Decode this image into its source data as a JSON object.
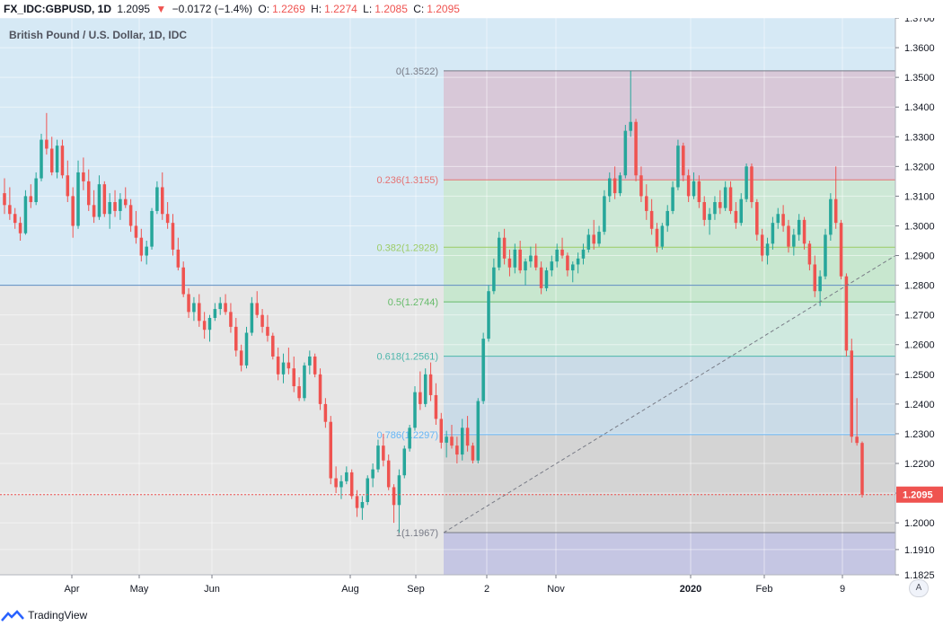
{
  "header": {
    "symbol": "FX_IDC:GBPUSD, 1D",
    "last": "1.2095",
    "change": "−0.0172 (−1.4%)",
    "o_label": "O:",
    "o_value": "1.2269",
    "h_label": "H:",
    "h_value": "1.2274",
    "l_label": "L:",
    "l_value": "1.2085",
    "c_label": "C:",
    "c_value": "1.2095"
  },
  "chart_title": "British Pound / U.S. Dollar, 1D, IDC",
  "footer": {
    "brand": "TradingView"
  },
  "auto_label": "A",
  "colors": {
    "up": "#26a69a",
    "down": "#ef5350",
    "upper_zone": "#d6e9f5",
    "lower_zone": "#e6e6e6",
    "bottom_zone": "#c5c6e3",
    "fib_0_236": "#d8c8d8",
    "fib_236_382": "#cde8d6",
    "fib_382_5": "#c8e7cf",
    "fib_5_618": "#cfe9df",
    "fib_618_786": "#cadbe7",
    "fib_786_1": "#d4d4d4"
  },
  "chart_data": {
    "type": "candlestick",
    "title": "British Pound / U.S. Dollar, 1D, IDC",
    "ylim": [
      1.1825,
      1.37
    ],
    "y_ticks": [
      "1.3700",
      "1.3600",
      "1.3500",
      "1.3400",
      "1.3300",
      "1.3200",
      "1.3100",
      "1.3000",
      "1.2900",
      "1.2800",
      "1.2700",
      "1.2600",
      "1.2500",
      "1.2400",
      "1.2300",
      "1.2200",
      "1.2100",
      "1.2000",
      "1.1910",
      "1.1825"
    ],
    "x_ticks": [
      "Apr",
      "May",
      "Jun",
      "Aug",
      "Sep",
      "2",
      "Nov",
      "2020",
      "Feb",
      "9"
    ],
    "current_price": "1.2095",
    "fib_levels": [
      {
        "label": "0(1.3522)",
        "value": 1.3522,
        "color": "#787b86"
      },
      {
        "label": "0.236(1.3155)",
        "value": 1.3155,
        "color": "#e57373"
      },
      {
        "label": "0.382(1.2928)",
        "value": 1.2928,
        "color": "#9ccc65"
      },
      {
        "label": "0.5(1.2744)",
        "value": 1.2744,
        "color": "#66bb6a"
      },
      {
        "label": "0.618(1.2561)",
        "value": 1.2561,
        "color": "#4db6ac"
      },
      {
        "label": "0.786(1.2297)",
        "value": 1.2297,
        "color": "#64b5f6"
      },
      {
        "label": "1(1.1967)",
        "value": 1.1967,
        "color": "#787b86"
      }
    ],
    "horizontal_line": 1.28,
    "candles": [
      [
        1.311,
        1.316,
        1.304,
        1.307
      ],
      [
        1.307,
        1.313,
        1.302,
        1.304
      ],
      [
        1.304,
        1.306,
        1.299,
        1.301
      ],
      [
        1.301,
        1.303,
        1.295,
        1.2975
      ],
      [
        1.2975,
        1.312,
        1.297,
        1.31
      ],
      [
        1.31,
        1.314,
        1.306,
        1.308
      ],
      [
        1.308,
        1.318,
        1.307,
        1.316
      ],
      [
        1.316,
        1.331,
        1.315,
        1.329
      ],
      [
        1.329,
        1.338,
        1.324,
        1.326
      ],
      [
        1.326,
        1.33,
        1.317,
        1.318
      ],
      [
        1.318,
        1.329,
        1.316,
        1.327
      ],
      [
        1.327,
        1.329,
        1.316,
        1.317
      ],
      [
        1.317,
        1.322,
        1.308,
        1.31
      ],
      [
        1.31,
        1.313,
        1.296,
        1.3
      ],
      [
        1.3,
        1.322,
        1.299,
        1.318
      ],
      [
        1.318,
        1.323,
        1.312,
        1.315
      ],
      [
        1.315,
        1.319,
        1.305,
        1.307
      ],
      [
        1.307,
        1.312,
        1.301,
        1.303
      ],
      [
        1.303,
        1.317,
        1.302,
        1.314
      ],
      [
        1.314,
        1.315,
        1.303,
        1.304
      ],
      [
        1.304,
        1.311,
        1.299,
        1.308
      ],
      [
        1.308,
        1.312,
        1.303,
        1.305
      ],
      [
        1.305,
        1.311,
        1.302,
        1.309
      ],
      [
        1.309,
        1.313,
        1.306,
        1.307
      ],
      [
        1.307,
        1.309,
        1.298,
        1.3
      ],
      [
        1.3,
        1.305,
        1.294,
        1.296
      ],
      [
        1.296,
        1.299,
        1.288,
        1.29
      ],
      [
        1.29,
        1.295,
        1.287,
        1.293
      ],
      [
        1.293,
        1.306,
        1.292,
        1.305
      ],
      [
        1.305,
        1.315,
        1.304,
        1.313
      ],
      [
        1.313,
        1.318,
        1.302,
        1.304
      ],
      [
        1.304,
        1.308,
        1.299,
        1.301
      ],
      [
        1.301,
        1.304,
        1.29,
        1.292
      ],
      [
        1.292,
        1.296,
        1.285,
        1.286
      ],
      [
        1.286,
        1.288,
        1.276,
        1.277
      ],
      [
        1.277,
        1.279,
        1.269,
        1.271
      ],
      [
        1.271,
        1.276,
        1.268,
        1.274
      ],
      [
        1.274,
        1.277,
        1.266,
        1.268
      ],
      [
        1.268,
        1.271,
        1.262,
        1.265
      ],
      [
        1.265,
        1.27,
        1.261,
        1.269
      ],
      [
        1.269,
        1.274,
        1.268,
        1.272
      ],
      [
        1.272,
        1.276,
        1.27,
        1.274
      ],
      [
        1.274,
        1.277,
        1.27,
        1.271
      ],
      [
        1.271,
        1.274,
        1.264,
        1.266
      ],
      [
        1.266,
        1.269,
        1.256,
        1.258
      ],
      [
        1.258,
        1.26,
        1.251,
        1.253
      ],
      [
        1.253,
        1.266,
        1.252,
        1.264
      ],
      [
        1.264,
        1.276,
        1.263,
        1.274
      ],
      [
        1.274,
        1.278,
        1.269,
        1.27
      ],
      [
        1.27,
        1.272,
        1.264,
        1.266
      ],
      [
        1.266,
        1.27,
        1.261,
        1.263
      ],
      [
        1.263,
        1.264,
        1.255,
        1.256
      ],
      [
        1.256,
        1.259,
        1.248,
        1.25
      ],
      [
        1.25,
        1.257,
        1.247,
        1.254
      ],
      [
        1.254,
        1.259,
        1.25,
        1.252
      ],
      [
        1.252,
        1.256,
        1.244,
        1.246
      ],
      [
        1.246,
        1.249,
        1.241,
        1.242
      ],
      [
        1.242,
        1.254,
        1.241,
        1.253
      ],
      [
        1.253,
        1.258,
        1.25,
        1.256
      ],
      [
        1.256,
        1.257,
        1.249,
        1.25
      ],
      [
        1.25,
        1.252,
        1.238,
        1.24
      ],
      [
        1.24,
        1.242,
        1.232,
        1.234
      ],
      [
        1.234,
        1.236,
        1.213,
        1.215
      ],
      [
        1.215,
        1.219,
        1.21,
        1.212
      ],
      [
        1.212,
        1.216,
        1.208,
        1.214
      ],
      [
        1.214,
        1.219,
        1.213,
        1.217
      ],
      [
        1.217,
        1.218,
        1.208,
        1.209
      ],
      [
        1.209,
        1.211,
        1.202,
        1.205
      ],
      [
        1.205,
        1.209,
        1.201,
        1.207
      ],
      [
        1.207,
        1.216,
        1.206,
        1.215
      ],
      [
        1.215,
        1.22,
        1.212,
        1.218
      ],
      [
        1.218,
        1.228,
        1.217,
        1.226
      ],
      [
        1.226,
        1.23,
        1.219,
        1.221
      ],
      [
        1.221,
        1.223,
        1.211,
        1.212
      ],
      [
        1.212,
        1.213,
        1.2,
        1.206
      ],
      [
        1.206,
        1.218,
        1.1967,
        1.216
      ],
      [
        1.216,
        1.226,
        1.215,
        1.225
      ],
      [
        1.225,
        1.233,
        1.224,
        1.232
      ],
      [
        1.232,
        1.246,
        1.231,
        1.244
      ],
      [
        1.244,
        1.251,
        1.238,
        1.24
      ],
      [
        1.24,
        1.252,
        1.239,
        1.25
      ],
      [
        1.25,
        1.254,
        1.241,
        1.243
      ],
      [
        1.243,
        1.247,
        1.233,
        1.235
      ],
      [
        1.235,
        1.237,
        1.225,
        1.227
      ],
      [
        1.227,
        1.231,
        1.222,
        1.229
      ],
      [
        1.229,
        1.233,
        1.225,
        1.226
      ],
      [
        1.226,
        1.229,
        1.22,
        1.223
      ],
      [
        1.223,
        1.235,
        1.221,
        1.232
      ],
      [
        1.232,
        1.236,
        1.224,
        1.226
      ],
      [
        1.226,
        1.227,
        1.22,
        1.221
      ],
      [
        1.221,
        1.242,
        1.22,
        1.241
      ],
      [
        1.241,
        1.264,
        1.24,
        1.262
      ],
      [
        1.262,
        1.28,
        1.261,
        1.278
      ],
      [
        1.278,
        1.289,
        1.277,
        1.286
      ],
      [
        1.286,
        1.298,
        1.285,
        1.296
      ],
      [
        1.296,
        1.299,
        1.287,
        1.289
      ],
      [
        1.289,
        1.292,
        1.283,
        1.286
      ],
      [
        1.286,
        1.294,
        1.284,
        1.292
      ],
      [
        1.292,
        1.295,
        1.284,
        1.285
      ],
      [
        1.285,
        1.289,
        1.28,
        1.288
      ],
      [
        1.288,
        1.293,
        1.286,
        1.29
      ],
      [
        1.29,
        1.294,
        1.285,
        1.286
      ],
      [
        1.286,
        1.288,
        1.277,
        1.279
      ],
      [
        1.279,
        1.286,
        1.278,
        1.285
      ],
      [
        1.285,
        1.29,
        1.283,
        1.288
      ],
      [
        1.288,
        1.294,
        1.286,
        1.292
      ],
      [
        1.292,
        1.296,
        1.289,
        1.29
      ],
      [
        1.29,
        1.291,
        1.283,
        1.285
      ],
      [
        1.285,
        1.288,
        1.281,
        1.287
      ],
      [
        1.287,
        1.291,
        1.284,
        1.289
      ],
      [
        1.289,
        1.294,
        1.287,
        1.292
      ],
      [
        1.292,
        1.299,
        1.291,
        1.297
      ],
      [
        1.297,
        1.302,
        1.292,
        1.294
      ],
      [
        1.294,
        1.3,
        1.293,
        1.298
      ],
      [
        1.298,
        1.312,
        1.297,
        1.31
      ],
      [
        1.31,
        1.318,
        1.308,
        1.316
      ],
      [
        1.316,
        1.32,
        1.309,
        1.311
      ],
      [
        1.311,
        1.318,
        1.31,
        1.317
      ],
      [
        1.317,
        1.334,
        1.316,
        1.332
      ],
      [
        1.332,
        1.3522,
        1.33,
        1.335
      ],
      [
        1.335,
        1.336,
        1.315,
        1.317
      ],
      [
        1.317,
        1.32,
        1.308,
        1.31
      ],
      [
        1.31,
        1.314,
        1.302,
        1.305
      ],
      [
        1.305,
        1.309,
        1.297,
        1.299
      ],
      [
        1.299,
        1.301,
        1.291,
        1.293
      ],
      [
        1.293,
        1.301,
        1.292,
        1.3
      ],
      [
        1.3,
        1.307,
        1.298,
        1.305
      ],
      [
        1.305,
        1.315,
        1.304,
        1.313
      ],
      [
        1.313,
        1.329,
        1.312,
        1.327
      ],
      [
        1.327,
        1.328,
        1.315,
        1.317
      ],
      [
        1.317,
        1.319,
        1.308,
        1.31
      ],
      [
        1.31,
        1.318,
        1.309,
        1.315
      ],
      [
        1.315,
        1.317,
        1.306,
        1.308
      ],
      [
        1.308,
        1.31,
        1.3,
        1.302
      ],
      [
        1.302,
        1.306,
        1.297,
        1.304
      ],
      [
        1.304,
        1.31,
        1.302,
        1.308
      ],
      [
        1.308,
        1.312,
        1.304,
        1.306
      ],
      [
        1.306,
        1.315,
        1.305,
        1.313
      ],
      [
        1.313,
        1.315,
        1.304,
        1.305
      ],
      [
        1.305,
        1.308,
        1.299,
        1.301
      ],
      [
        1.301,
        1.311,
        1.3,
        1.309
      ],
      [
        1.309,
        1.321,
        1.308,
        1.32
      ],
      [
        1.32,
        1.321,
        1.306,
        1.308
      ],
      [
        1.308,
        1.309,
        1.295,
        1.297
      ],
      [
        1.297,
        1.299,
        1.288,
        1.29
      ],
      [
        1.29,
        1.296,
        1.287,
        1.294
      ],
      [
        1.294,
        1.303,
        1.292,
        1.301
      ],
      [
        1.301,
        1.306,
        1.299,
        1.304
      ],
      [
        1.304,
        1.307,
        1.298,
        1.3
      ],
      [
        1.3,
        1.302,
        1.291,
        1.293
      ],
      [
        1.293,
        1.299,
        1.29,
        1.297
      ],
      [
        1.297,
        1.304,
        1.295,
        1.302
      ],
      [
        1.302,
        1.303,
        1.292,
        1.294
      ],
      [
        1.294,
        1.295,
        1.285,
        1.287
      ],
      [
        1.287,
        1.29,
        1.276,
        1.278
      ],
      [
        1.278,
        1.285,
        1.273,
        1.283
      ],
      [
        1.283,
        1.299,
        1.282,
        1.297
      ],
      [
        1.297,
        1.311,
        1.295,
        1.309
      ],
      [
        1.309,
        1.32,
        1.299,
        1.301
      ],
      [
        1.301,
        1.302,
        1.282,
        1.283
      ],
      [
        1.283,
        1.284,
        1.256,
        1.258
      ],
      [
        1.258,
        1.262,
        1.227,
        1.229
      ],
      [
        1.229,
        1.242,
        1.226,
        1.2269
      ],
      [
        1.2269,
        1.2274,
        1.2085,
        1.2095
      ]
    ]
  }
}
